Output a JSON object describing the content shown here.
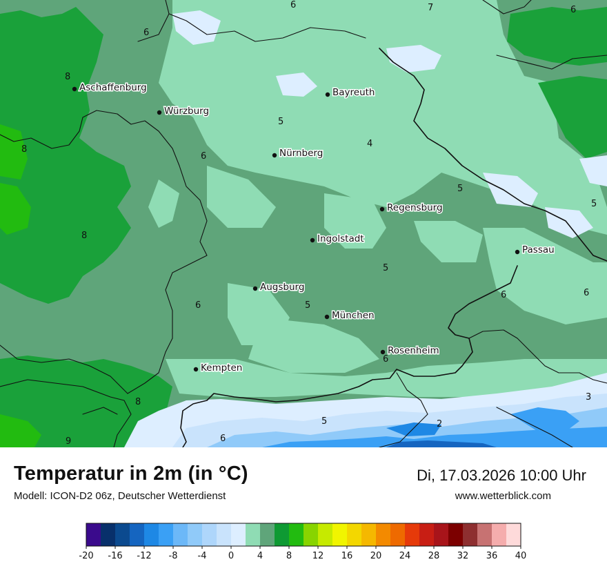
{
  "header": {
    "title": "Temperatur in 2m (in °C)",
    "model": "Modell: ICON-D2 06z, Deutscher Wetterdienst",
    "datetime": "Di, 17.03.2026 10:00 Uhr",
    "website": "www.wetterblick.com"
  },
  "cities": [
    {
      "name": "Aschaffenburg"
    },
    {
      "name": "Würzburg"
    },
    {
      "name": "Bayreuth"
    },
    {
      "name": "Nürnberg"
    },
    {
      "name": "Regensburg"
    },
    {
      "name": "Ingolstadt"
    },
    {
      "name": "Passau"
    },
    {
      "name": "Augsburg"
    },
    {
      "name": "München"
    },
    {
      "name": "Rosenheim"
    },
    {
      "name": "Kempten"
    }
  ],
  "isolines": [
    "6",
    "7",
    "6",
    "6",
    "8",
    "5",
    "8",
    "4",
    "6",
    "5",
    "5",
    "8",
    "5",
    "6",
    "5",
    "6",
    "6",
    "6",
    "8",
    "3",
    "5",
    "2",
    "6",
    "9"
  ],
  "colorbar": {
    "ticks": [
      "-20",
      "-16",
      "-12",
      "-8",
      "-4",
      "0",
      "4",
      "8",
      "12",
      "16",
      "20",
      "24",
      "28",
      "32",
      "36",
      "40"
    ],
    "colors": [
      "#3a0a8c",
      "#08306b",
      "#0b4a8f",
      "#1565c0",
      "#1e88e5",
      "#3aa0f5",
      "#6cb8f8",
      "#90caf9",
      "#aed6fb",
      "#c9e3fc",
      "#ddeeff",
      "#8fdcb4",
      "#5fa57a",
      "#0e9a33",
      "#22bb10",
      "#88d400",
      "#c6ea00",
      "#f1f500",
      "#f3d700",
      "#f5b800",
      "#f38a00",
      "#ee6a00",
      "#e63a0a",
      "#c81e14",
      "#a8141a",
      "#7c0000",
      "#8e2f30",
      "#c77272",
      "#f5adad",
      "#fedada"
    ]
  }
}
